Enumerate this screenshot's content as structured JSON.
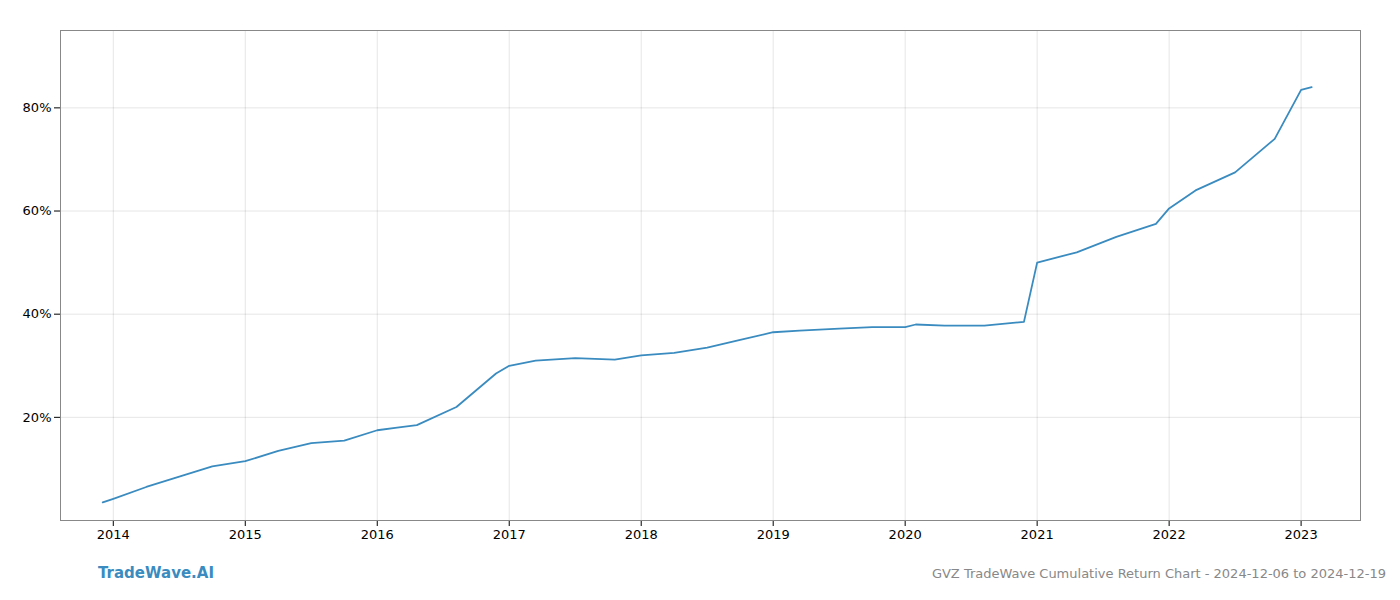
{
  "chart_data": {
    "type": "line",
    "title": "GVZ TradeWave Cumulative Return Chart - 2024-12-06 to 2024-12-19",
    "annotations": [
      "TradeWave.AI"
    ],
    "color": "#3a8bbf",
    "x": [
      2013.92,
      2014.0,
      2014.25,
      2014.5,
      2014.75,
      2015.0,
      2015.25,
      2015.5,
      2015.75,
      2016.0,
      2016.15,
      2016.3,
      2016.6,
      2016.9,
      2017.0,
      2017.2,
      2017.5,
      2017.8,
      2018.0,
      2018.25,
      2018.5,
      2018.75,
      2019.0,
      2019.2,
      2019.5,
      2019.75,
      2020.0,
      2020.08,
      2020.3,
      2020.6,
      2020.9,
      2021.0,
      2021.3,
      2021.6,
      2021.9,
      2022.0,
      2022.2,
      2022.5,
      2022.8,
      2023.0,
      2023.08
    ],
    "values": [
      3.5,
      4.2,
      6.5,
      8.5,
      10.5,
      11.5,
      13.5,
      15.0,
      15.5,
      17.5,
      18.0,
      18.5,
      22.0,
      28.5,
      30.0,
      31.0,
      31.5,
      31.2,
      32.0,
      32.5,
      33.5,
      35.0,
      36.5,
      36.8,
      37.2,
      37.5,
      37.5,
      38.0,
      37.8,
      37.8,
      38.5,
      50.0,
      52.0,
      55.0,
      57.5,
      60.5,
      64.0,
      67.5,
      74.0,
      83.5,
      84.0
    ],
    "xlim": [
      2013.6,
      2023.45
    ],
    "xticks": [
      2014,
      2015,
      2016,
      2017,
      2018,
      2019,
      2020,
      2021,
      2022,
      2023
    ],
    "ylim": [
      0,
      95
    ],
    "yticks": [
      {
        "value": 20,
        "label": "20%"
      },
      {
        "value": 40,
        "label": "40%"
      },
      {
        "value": 60,
        "label": "60%"
      },
      {
        "value": 80,
        "label": "80%"
      }
    ],
    "grid": true
  }
}
